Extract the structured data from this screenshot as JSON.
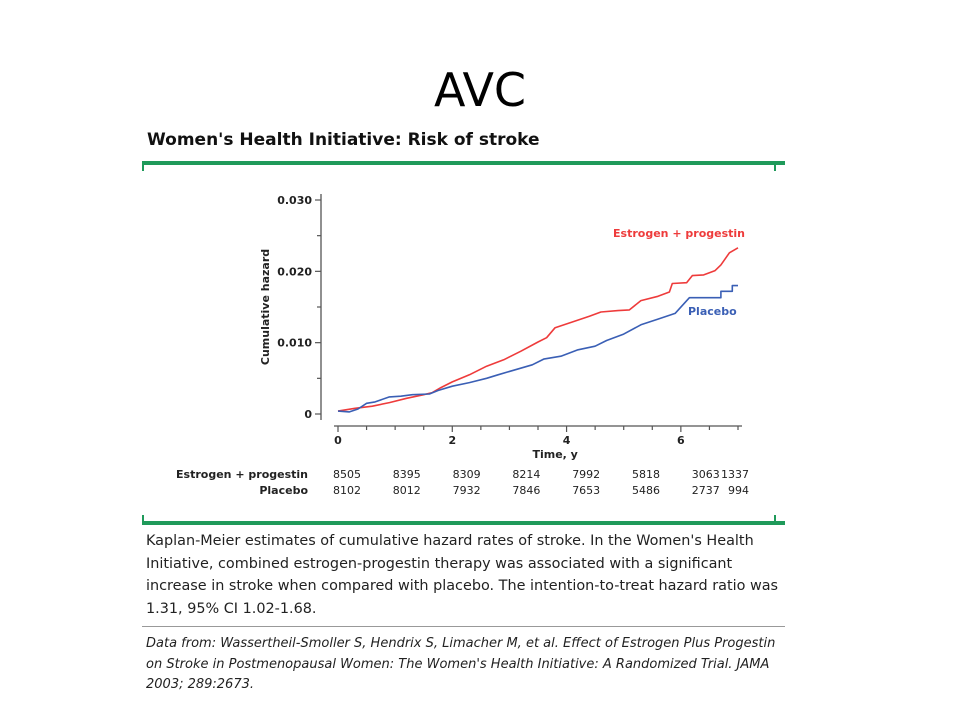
{
  "slide": {
    "title": "AVC"
  },
  "figure": {
    "title": "Women's Health Initiative: Risk of stroke",
    "caption": "Kaplan-Meier estimates of cumulative hazard rates of stroke. In the Women's Health Initiative, combined estrogen-progestin therapy was associated with a significant increase in stroke when compared with placebo. The intention-to-treat hazard ratio was 1.31, 95% CI 1.02-1.68.",
    "source": "Data from: Wassertheil-Smoller S, Hendrix S, Limacher M, et al. Effect of Estrogen Plus Progestin on Stroke in Postmenopausal Women: The Women's Health Initiative: A Randomized Trial. JAMA 2003; 289:2673."
  },
  "chart_data": {
    "type": "line",
    "xlabel": "Time, y",
    "ylabel": "Cumulative hazard",
    "xlim": [
      0,
      7
    ],
    "ylim": [
      0,
      0.03
    ],
    "xticks": [
      0,
      2,
      4,
      6
    ],
    "xtick_labels": [
      "0",
      "2",
      "4",
      "6"
    ],
    "yticks": [
      0,
      0.01,
      0.02,
      0.03
    ],
    "ytick_labels": [
      "0",
      "0.010",
      "0.020",
      "0.030"
    ],
    "grid": false,
    "series": [
      {
        "name": "Estrogen + progestin",
        "color": "#ee3b3b",
        "points": [
          [
            0,
            0.0004
          ],
          [
            0.3,
            0.0008
          ],
          [
            0.6,
            0.0011
          ],
          [
            0.9,
            0.0016
          ],
          [
            1.2,
            0.0022
          ],
          [
            1.5,
            0.0027
          ],
          [
            1.65,
            0.003
          ],
          [
            1.8,
            0.0037
          ],
          [
            2.0,
            0.0045
          ],
          [
            2.3,
            0.0055
          ],
          [
            2.6,
            0.0067
          ],
          [
            2.9,
            0.0076
          ],
          [
            3.2,
            0.0088
          ],
          [
            3.5,
            0.0101
          ],
          [
            3.65,
            0.0107
          ],
          [
            3.8,
            0.0121
          ],
          [
            4.1,
            0.0129
          ],
          [
            4.4,
            0.0137
          ],
          [
            4.6,
            0.0143
          ],
          [
            4.9,
            0.0145
          ],
          [
            5.1,
            0.0146
          ],
          [
            5.3,
            0.0159
          ],
          [
            5.6,
            0.0165
          ],
          [
            5.8,
            0.0171
          ],
          [
            5.85,
            0.0183
          ],
          [
            6.1,
            0.0184
          ],
          [
            6.2,
            0.0194
          ],
          [
            6.4,
            0.0195
          ],
          [
            6.6,
            0.0201
          ],
          [
            6.7,
            0.0209
          ],
          [
            6.85,
            0.0226
          ],
          [
            7.0,
            0.0233
          ]
        ]
      },
      {
        "name": "Placebo",
        "color": "#3a5fb5",
        "points": [
          [
            0,
            0.0004
          ],
          [
            0.2,
            0.0003
          ],
          [
            0.35,
            0.0007
          ],
          [
            0.5,
            0.0015
          ],
          [
            0.65,
            0.0017
          ],
          [
            0.9,
            0.0024
          ],
          [
            1.1,
            0.0025
          ],
          [
            1.3,
            0.0027
          ],
          [
            1.6,
            0.0028
          ],
          [
            1.75,
            0.0033
          ],
          [
            2.0,
            0.0039
          ],
          [
            2.3,
            0.0044
          ],
          [
            2.6,
            0.005
          ],
          [
            2.8,
            0.0055
          ],
          [
            3.1,
            0.0062
          ],
          [
            3.4,
            0.0069
          ],
          [
            3.6,
            0.0077
          ],
          [
            3.9,
            0.0081
          ],
          [
            4.2,
            0.009
          ],
          [
            4.5,
            0.0095
          ],
          [
            4.7,
            0.0103
          ],
          [
            5.0,
            0.0112
          ],
          [
            5.3,
            0.0125
          ],
          [
            5.6,
            0.0133
          ],
          [
            5.9,
            0.0141
          ],
          [
            6.15,
            0.0163
          ],
          [
            6.7,
            0.0163
          ],
          [
            6.7,
            0.0172
          ],
          [
            6.9,
            0.0172
          ],
          [
            6.9,
            0.018
          ],
          [
            7.0,
            0.018
          ]
        ]
      }
    ],
    "risk_table": {
      "x": [
        0,
        1,
        2,
        3,
        4,
        5,
        6,
        7
      ],
      "rows": [
        {
          "label": "Estrogen + progestin",
          "values": [
            "8505",
            "8395",
            "8309",
            "8214",
            "7992",
            "5818",
            "3063",
            "1337"
          ]
        },
        {
          "label": "Placebo",
          "values": [
            "8102",
            "8012",
            "7932",
            "7846",
            "7653",
            "5486",
            "2737",
            "994"
          ]
        }
      ]
    }
  }
}
